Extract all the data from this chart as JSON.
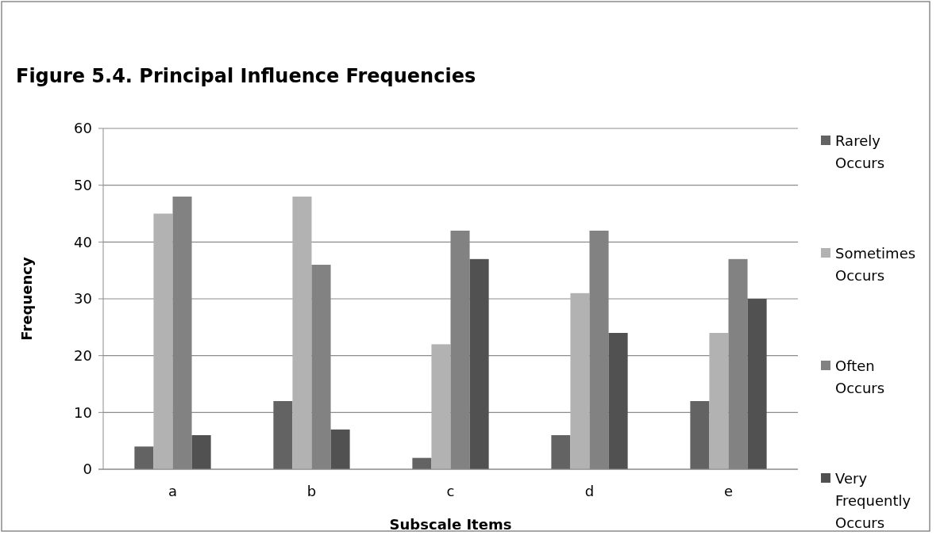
{
  "chart_data": {
    "type": "bar",
    "title": "Figure 5.4.  Principal Influence Frequencies",
    "xlabel": "Subscale Items",
    "ylabel": "Frequency",
    "categories": [
      "a",
      "b",
      "c",
      "d",
      "e"
    ],
    "series": [
      {
        "name": "Rarely Occurs",
        "color": "#636363",
        "values": [
          4,
          12,
          2,
          6,
          12
        ]
      },
      {
        "name": "Sometimes Occurs",
        "color": "#b2b2b2",
        "values": [
          45,
          48,
          22,
          31,
          24
        ]
      },
      {
        "name": "Often Occurs",
        "color": "#828282",
        "values": [
          48,
          36,
          42,
          42,
          37
        ]
      },
      {
        "name": "Very Frequently Occurs",
        "color": "#515151",
        "values": [
          6,
          7,
          37,
          24,
          30
        ]
      }
    ],
    "ylim": [
      0,
      60
    ],
    "yticks": [
      0,
      10,
      20,
      30,
      40,
      50,
      60
    ],
    "grid": "y",
    "legend": "right"
  }
}
